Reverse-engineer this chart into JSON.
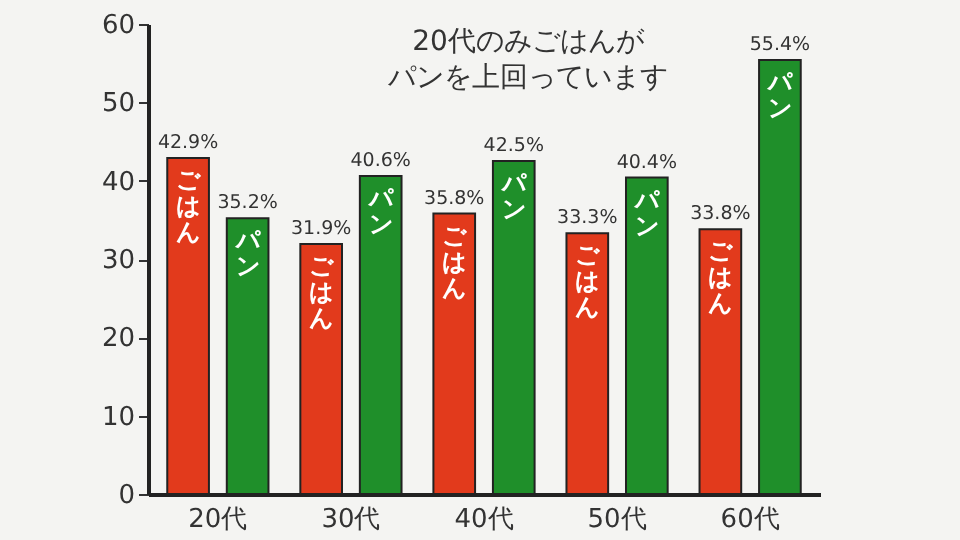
{
  "chart_data": {
    "type": "bar",
    "categories": [
      "20代",
      "30代",
      "40代",
      "50代",
      "60代"
    ],
    "series": [
      {
        "name": "ごはん",
        "color": "#e23a1c",
        "values": [
          42.9,
          31.9,
          35.8,
          33.3,
          33.8
        ],
        "value_labels": [
          "42.9%",
          "31.9%",
          "35.8%",
          "33.3%",
          "33.8%"
        ]
      },
      {
        "name": "パン",
        "color": "#1f8f2a",
        "values": [
          35.2,
          40.6,
          42.5,
          40.4,
          55.4
        ],
        "value_labels": [
          "35.2%",
          "40.6%",
          "42.5%",
          "40.4%",
          "55.4%"
        ]
      }
    ],
    "ylim": [
      0,
      60
    ],
    "yticks": [
      0,
      10,
      20,
      30,
      40,
      50,
      60
    ],
    "grid": false,
    "legend": false,
    "annotations": [
      "20代のみごはんが",
      "パンを上回っています"
    ]
  }
}
